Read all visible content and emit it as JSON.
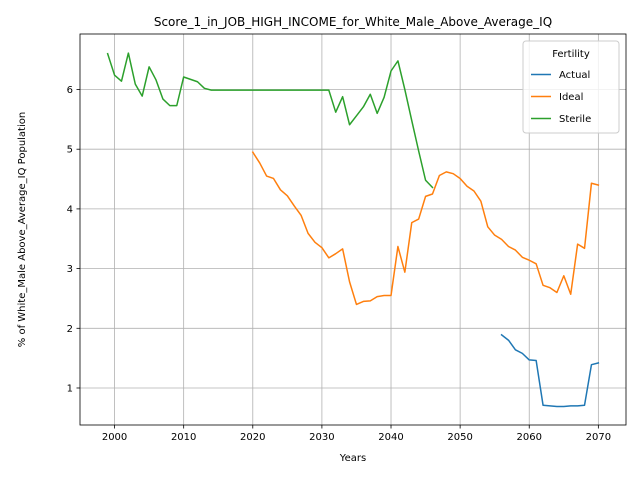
{
  "chart_data": {
    "type": "line",
    "title": "Score_1_in_JOB_HIGH_INCOME_for_White_Male_Above_Average_IQ",
    "xlabel": "Years",
    "ylabel": "% of White_Male Above_Average_IQ Population",
    "xlim": [
      1995,
      2074
    ],
    "ylim": [
      0.38,
      6.93
    ],
    "x_ticks": [
      2000,
      2010,
      2020,
      2030,
      2040,
      2050,
      2060,
      2070
    ],
    "y_ticks": [
      1,
      2,
      3,
      4,
      5,
      6
    ],
    "grid": true,
    "legend": {
      "title": "Fertility",
      "placement": "top-right"
    },
    "series": [
      {
        "name": "Actual",
        "color": "#1f77b4",
        "points": [
          [
            2056,
            1.89
          ],
          [
            2057,
            1.8
          ],
          [
            2058,
            1.64
          ],
          [
            2059,
            1.58
          ],
          [
            2060,
            1.47
          ],
          [
            2061,
            1.46
          ],
          [
            2062,
            0.71
          ],
          [
            2063,
            0.7
          ],
          [
            2064,
            0.69
          ],
          [
            2065,
            0.69
          ],
          [
            2066,
            0.7
          ],
          [
            2067,
            0.7
          ],
          [
            2068,
            0.71
          ],
          [
            2069,
            1.39
          ],
          [
            2070,
            1.42
          ]
        ]
      },
      {
        "name": "Ideal",
        "color": "#ff7f0e",
        "points": [
          [
            2020,
            4.95
          ],
          [
            2021,
            4.77
          ],
          [
            2022,
            4.55
          ],
          [
            2023,
            4.51
          ],
          [
            2024,
            4.32
          ],
          [
            2025,
            4.22
          ],
          [
            2026,
            4.05
          ],
          [
            2027,
            3.89
          ],
          [
            2028,
            3.59
          ],
          [
            2029,
            3.44
          ],
          [
            2030,
            3.35
          ],
          [
            2031,
            3.18
          ],
          [
            2032,
            3.25
          ],
          [
            2033,
            3.33
          ],
          [
            2034,
            2.78
          ],
          [
            2035,
            2.4
          ],
          [
            2036,
            2.45
          ],
          [
            2037,
            2.46
          ],
          [
            2038,
            2.53
          ],
          [
            2039,
            2.55
          ],
          [
            2040,
            2.55
          ],
          [
            2041,
            3.37
          ],
          [
            2042,
            2.94
          ],
          [
            2043,
            3.77
          ],
          [
            2044,
            3.83
          ],
          [
            2045,
            4.21
          ],
          [
            2046,
            4.25
          ],
          [
            2047,
            4.56
          ],
          [
            2048,
            4.62
          ],
          [
            2049,
            4.59
          ],
          [
            2050,
            4.51
          ],
          [
            2051,
            4.38
          ],
          [
            2052,
            4.3
          ],
          [
            2053,
            4.13
          ],
          [
            2054,
            3.7
          ],
          [
            2055,
            3.56
          ],
          [
            2056,
            3.49
          ],
          [
            2057,
            3.37
          ],
          [
            2058,
            3.31
          ],
          [
            2059,
            3.19
          ],
          [
            2060,
            3.14
          ],
          [
            2061,
            3.08
          ],
          [
            2062,
            2.72
          ],
          [
            2063,
            2.68
          ],
          [
            2064,
            2.6
          ],
          [
            2065,
            2.88
          ],
          [
            2066,
            2.57
          ],
          [
            2067,
            3.41
          ],
          [
            2068,
            3.34
          ],
          [
            2069,
            4.43
          ],
          [
            2070,
            4.4
          ]
        ]
      },
      {
        "name": "Sterile",
        "color": "#2ca02c",
        "points": [
          [
            1999,
            6.6
          ],
          [
            2000,
            6.24
          ],
          [
            2001,
            6.14
          ],
          [
            2002,
            6.61
          ],
          [
            2003,
            6.09
          ],
          [
            2004,
            5.89
          ],
          [
            2005,
            6.38
          ],
          [
            2006,
            6.16
          ],
          [
            2007,
            5.84
          ],
          [
            2008,
            5.73
          ],
          [
            2009,
            5.73
          ],
          [
            2010,
            6.21
          ],
          [
            2011,
            6.17
          ],
          [
            2012,
            6.13
          ],
          [
            2013,
            6.02
          ],
          [
            2014,
            5.99
          ],
          [
            2015,
            5.99
          ],
          [
            2016,
            5.99
          ],
          [
            2017,
            5.99
          ],
          [
            2018,
            5.99
          ],
          [
            2019,
            5.99
          ],
          [
            2020,
            5.99
          ],
          [
            2021,
            5.99
          ],
          [
            2022,
            5.99
          ],
          [
            2023,
            5.99
          ],
          [
            2024,
            5.99
          ],
          [
            2025,
            5.99
          ],
          [
            2026,
            5.99
          ],
          [
            2027,
            5.99
          ],
          [
            2028,
            5.99
          ],
          [
            2029,
            5.99
          ],
          [
            2030,
            5.99
          ],
          [
            2031,
            5.99
          ],
          [
            2032,
            5.62
          ],
          [
            2033,
            5.88
          ],
          [
            2034,
            5.41
          ],
          [
            2035,
            5.56
          ],
          [
            2036,
            5.71
          ],
          [
            2037,
            5.92
          ],
          [
            2038,
            5.6
          ],
          [
            2039,
            5.87
          ],
          [
            2040,
            6.31
          ],
          [
            2041,
            6.48
          ],
          [
            2042,
            6.0
          ],
          [
            2043,
            5.48
          ],
          [
            2044,
            4.97
          ],
          [
            2045,
            4.48
          ],
          [
            2046,
            4.36
          ]
        ]
      }
    ]
  }
}
